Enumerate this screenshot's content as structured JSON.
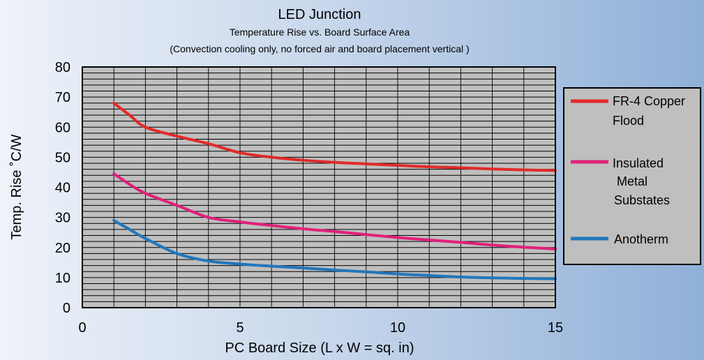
{
  "chart_data": {
    "type": "line",
    "title": "LED Junction",
    "subtitle": "Temperature Rise vs. Board Surface Area",
    "note": "(Convection cooling only, no forced air and board placement vertical )",
    "xlabel": "PC Board Size (L x W = sq. in)",
    "ylabel": "Temp. Rise  ˚C/W",
    "xlim": [
      0,
      15
    ],
    "ylim": [
      0,
      80
    ],
    "xticks": [
      0,
      5,
      10,
      15
    ],
    "yticks": [
      0,
      10,
      20,
      30,
      40,
      50,
      60,
      70,
      80
    ],
    "grid": true,
    "legend_position": "right",
    "series": [
      {
        "name": "FR-4 Copper Flood",
        "legend_lines": [
          "FR-4 Copper",
          "Flood"
        ],
        "color": "#e02a2a",
        "x": [
          1,
          1.5,
          2,
          3,
          4,
          5,
          6,
          7,
          8,
          9,
          10,
          11,
          12,
          13,
          14,
          15
        ],
        "y": [
          68,
          64,
          60,
          57,
          54.5,
          51.5,
          50,
          49,
          48.3,
          47.8,
          47.3,
          46.8,
          46.5,
          46.1,
          45.8,
          45.6
        ]
      },
      {
        "name": "Insulated Metal Substates",
        "legend_lines": [
          "Insulated",
          "Metal",
          "Substates"
        ],
        "color": "#e0207a",
        "x": [
          1,
          1.5,
          2,
          3,
          4,
          5,
          6,
          7,
          8,
          9,
          10,
          11,
          12,
          13,
          14,
          15
        ],
        "y": [
          44.5,
          41,
          38,
          34,
          30,
          28.5,
          27.3,
          26.2,
          25.3,
          24.3,
          23.3,
          22.5,
          21.7,
          20.8,
          20.1,
          19.5
        ]
      },
      {
        "name": "Anotherm",
        "legend_lines": [
          "Anotherm"
        ],
        "color": "#2277bb",
        "x": [
          1,
          1.5,
          2,
          3,
          4,
          5,
          6,
          7,
          8,
          9,
          10,
          11,
          12,
          13,
          14,
          15
        ],
        "y": [
          29,
          26,
          23,
          18,
          15.5,
          14.5,
          13.8,
          13.2,
          12.5,
          11.9,
          11.2,
          10.7,
          10.2,
          9.9,
          9.7,
          9.6
        ]
      }
    ]
  }
}
